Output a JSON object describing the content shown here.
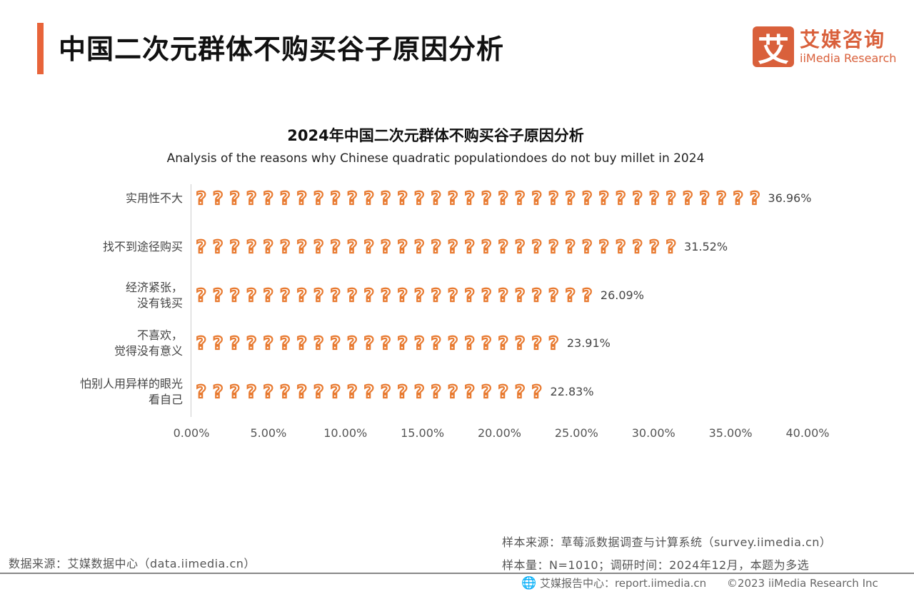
{
  "header": {
    "title": "中国二次元群体不购买谷子原因分析",
    "accent_color": "#e8643a"
  },
  "logo": {
    "mark": "艾",
    "cn": "艾媒咨询",
    "en": "iiMedia Research",
    "color": "#d9603b"
  },
  "chart_data": {
    "type": "bar",
    "orientation": "horizontal",
    "style": "pictograph",
    "icon": "question-mark-icon",
    "color": "#e87a30",
    "title": "2024年中国二次元群体不购买谷子原因分析",
    "subtitle": "Analysis of the reasons why Chinese quadratic populationdoes do not buy millet in 2024",
    "categories": [
      "实用性不大",
      "找不到途径购买",
      "经济紧张，\n没有钱买",
      "不喜欢，\n觉得没有意义",
      "怕别人用异样的眼光\n看自己"
    ],
    "values": [
      36.96,
      31.52,
      26.09,
      23.91,
      22.83
    ],
    "value_labels": [
      "36.96%",
      "31.52%",
      "26.09%",
      "23.91%",
      "22.83%"
    ],
    "xlim": [
      0,
      40
    ],
    "x_ticks": [
      "0.00%",
      "5.00%",
      "10.00%",
      "15.00%",
      "20.00%",
      "25.00%",
      "30.00%",
      "35.00%",
      "40.00%"
    ],
    "grid": false
  },
  "footer": {
    "data_source": "数据来源：艾媒数据中心（data.iimedia.cn）",
    "sample_source": "样本来源：草莓派数据调查与计算系统（survey.iimedia.cn）",
    "sample_info": "样本量：N=1010；调研时间：2024年12月，本题为多选",
    "report_center": "艾媒报告中心：report.iimedia.cn",
    "copyright": "©2023  iiMedia Research  Inc"
  }
}
